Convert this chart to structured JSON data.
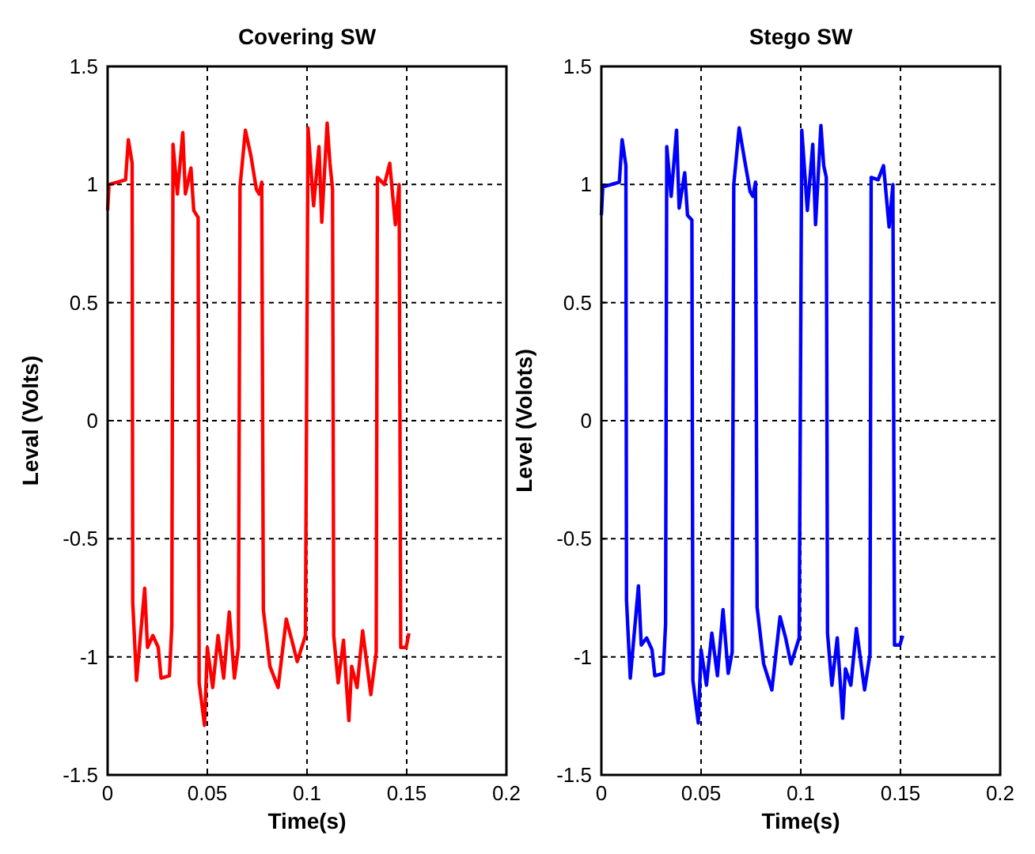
{
  "chart_data": [
    {
      "type": "line",
      "title": "Covering SW",
      "xlabel": "Time(s)",
      "ylabel": "Leval (Volts)",
      "xlim": [
        0,
        0.2
      ],
      "ylim": [
        -1.5,
        1.5
      ],
      "xticks": [
        0,
        0.05,
        0.1,
        0.15,
        0.2
      ],
      "yticks": [
        -1.5,
        -1,
        -0.5,
        0,
        0.5,
        1,
        1.5
      ],
      "grid": true,
      "line_style": "solid",
      "series": [
        {
          "color": "#ff0000",
          "x": [
            0,
            0.0007,
            0.0049,
            0.009,
            0.0104,
            0.0123,
            0.0126,
            0.0145,
            0.0186,
            0.02,
            0.0227,
            0.0254,
            0.0268,
            0.031,
            0.0322,
            0.0328,
            0.035,
            0.0377,
            0.039,
            0.0418,
            0.0432,
            0.0454,
            0.0459,
            0.0486,
            0.05,
            0.0527,
            0.0554,
            0.0582,
            0.061,
            0.0636,
            0.0656,
            0.0664,
            0.0691,
            0.0719,
            0.0746,
            0.076,
            0.0773,
            0.0781,
            0.0814,
            0.0855,
            0.0896,
            0.0924,
            0.0951,
            0.0992,
            0.1005,
            0.1033,
            0.106,
            0.1074,
            0.1101,
            0.1115,
            0.1128,
            0.1134,
            0.1156,
            0.1183,
            0.121,
            0.1224,
            0.1251,
            0.1279,
            0.132,
            0.1347,
            0.1353,
            0.1388,
            0.1415,
            0.1443,
            0.1462,
            0.147,
            0.1497,
            0.1511
          ],
          "values": [
            0.89,
            1.0,
            1.01,
            1.02,
            1.19,
            1.09,
            -0.77,
            -1.1,
            -0.71,
            -0.96,
            -0.91,
            -0.96,
            -1.09,
            -1.08,
            -0.87,
            1.17,
            0.96,
            1.22,
            0.96,
            1.07,
            0.89,
            0.86,
            -1.11,
            -1.29,
            -0.96,
            -1.13,
            -0.91,
            -1.09,
            -0.81,
            -1.09,
            -0.96,
            0.99,
            1.23,
            1.12,
            0.98,
            0.96,
            1.01,
            -0.8,
            -1.04,
            -1.13,
            -0.84,
            -0.93,
            -1.02,
            -0.91,
            1.24,
            0.91,
            1.16,
            0.84,
            1.26,
            1.09,
            0.98,
            -0.91,
            -1.11,
            -0.93,
            -1.27,
            -1.04,
            -1.13,
            -0.89,
            -1.16,
            -0.98,
            1.03,
            1.0,
            1.09,
            0.83,
            1.0,
            -0.96,
            -0.96,
            -0.9
          ]
        }
      ]
    },
    {
      "type": "line",
      "title": "Stego SW",
      "xlabel": "Time(s)",
      "ylabel": "Level (Volots)",
      "xlim": [
        0,
        0.2
      ],
      "ylim": [
        -1.5,
        1.5
      ],
      "xticks": [
        0,
        0.05,
        0.1,
        0.15,
        0.2
      ],
      "yticks": [
        -1.5,
        -1,
        -0.5,
        0,
        0.5,
        1,
        1.5
      ],
      "grid": true,
      "line_style": "solid",
      "series": [
        {
          "color": "#0000ff",
          "x": [
            0,
            0.0007,
            0.0049,
            0.009,
            0.0104,
            0.0123,
            0.0126,
            0.0145,
            0.0186,
            0.02,
            0.0227,
            0.0254,
            0.0268,
            0.031,
            0.0322,
            0.0328,
            0.035,
            0.0377,
            0.039,
            0.0418,
            0.0432,
            0.0454,
            0.0459,
            0.0486,
            0.05,
            0.0527,
            0.0554,
            0.0582,
            0.061,
            0.0636,
            0.0656,
            0.0664,
            0.0691,
            0.0719,
            0.0746,
            0.076,
            0.0773,
            0.0781,
            0.0814,
            0.0855,
            0.0896,
            0.0924,
            0.0951,
            0.0992,
            0.1005,
            0.1033,
            0.106,
            0.1074,
            0.1101,
            0.1115,
            0.1128,
            0.1134,
            0.1156,
            0.1183,
            0.121,
            0.1224,
            0.1251,
            0.1279,
            0.132,
            0.1347,
            0.1353,
            0.1388,
            0.1415,
            0.1443,
            0.1462,
            0.147,
            0.1497,
            0.1511
          ],
          "values": [
            0.87,
            0.99,
            1.0,
            1.01,
            1.19,
            1.08,
            -0.76,
            -1.09,
            -0.7,
            -0.95,
            -0.92,
            -0.97,
            -1.08,
            -1.07,
            -0.86,
            1.16,
            0.95,
            1.23,
            0.9,
            1.05,
            0.87,
            0.85,
            -1.1,
            -1.28,
            -0.97,
            -1.12,
            -0.9,
            -1.08,
            -0.8,
            -1.07,
            -0.98,
            1.0,
            1.24,
            1.1,
            0.97,
            0.95,
            1.01,
            -0.79,
            -1.03,
            -1.14,
            -0.83,
            -0.92,
            -1.03,
            -0.92,
            1.23,
            0.89,
            1.17,
            0.83,
            1.25,
            1.08,
            1.03,
            -0.9,
            -1.12,
            -0.92,
            -1.26,
            -1.05,
            -1.12,
            -0.88,
            -1.14,
            -0.99,
            1.03,
            1.02,
            1.08,
            0.82,
            1.0,
            -0.95,
            -0.95,
            -0.91
          ]
        }
      ]
    }
  ]
}
